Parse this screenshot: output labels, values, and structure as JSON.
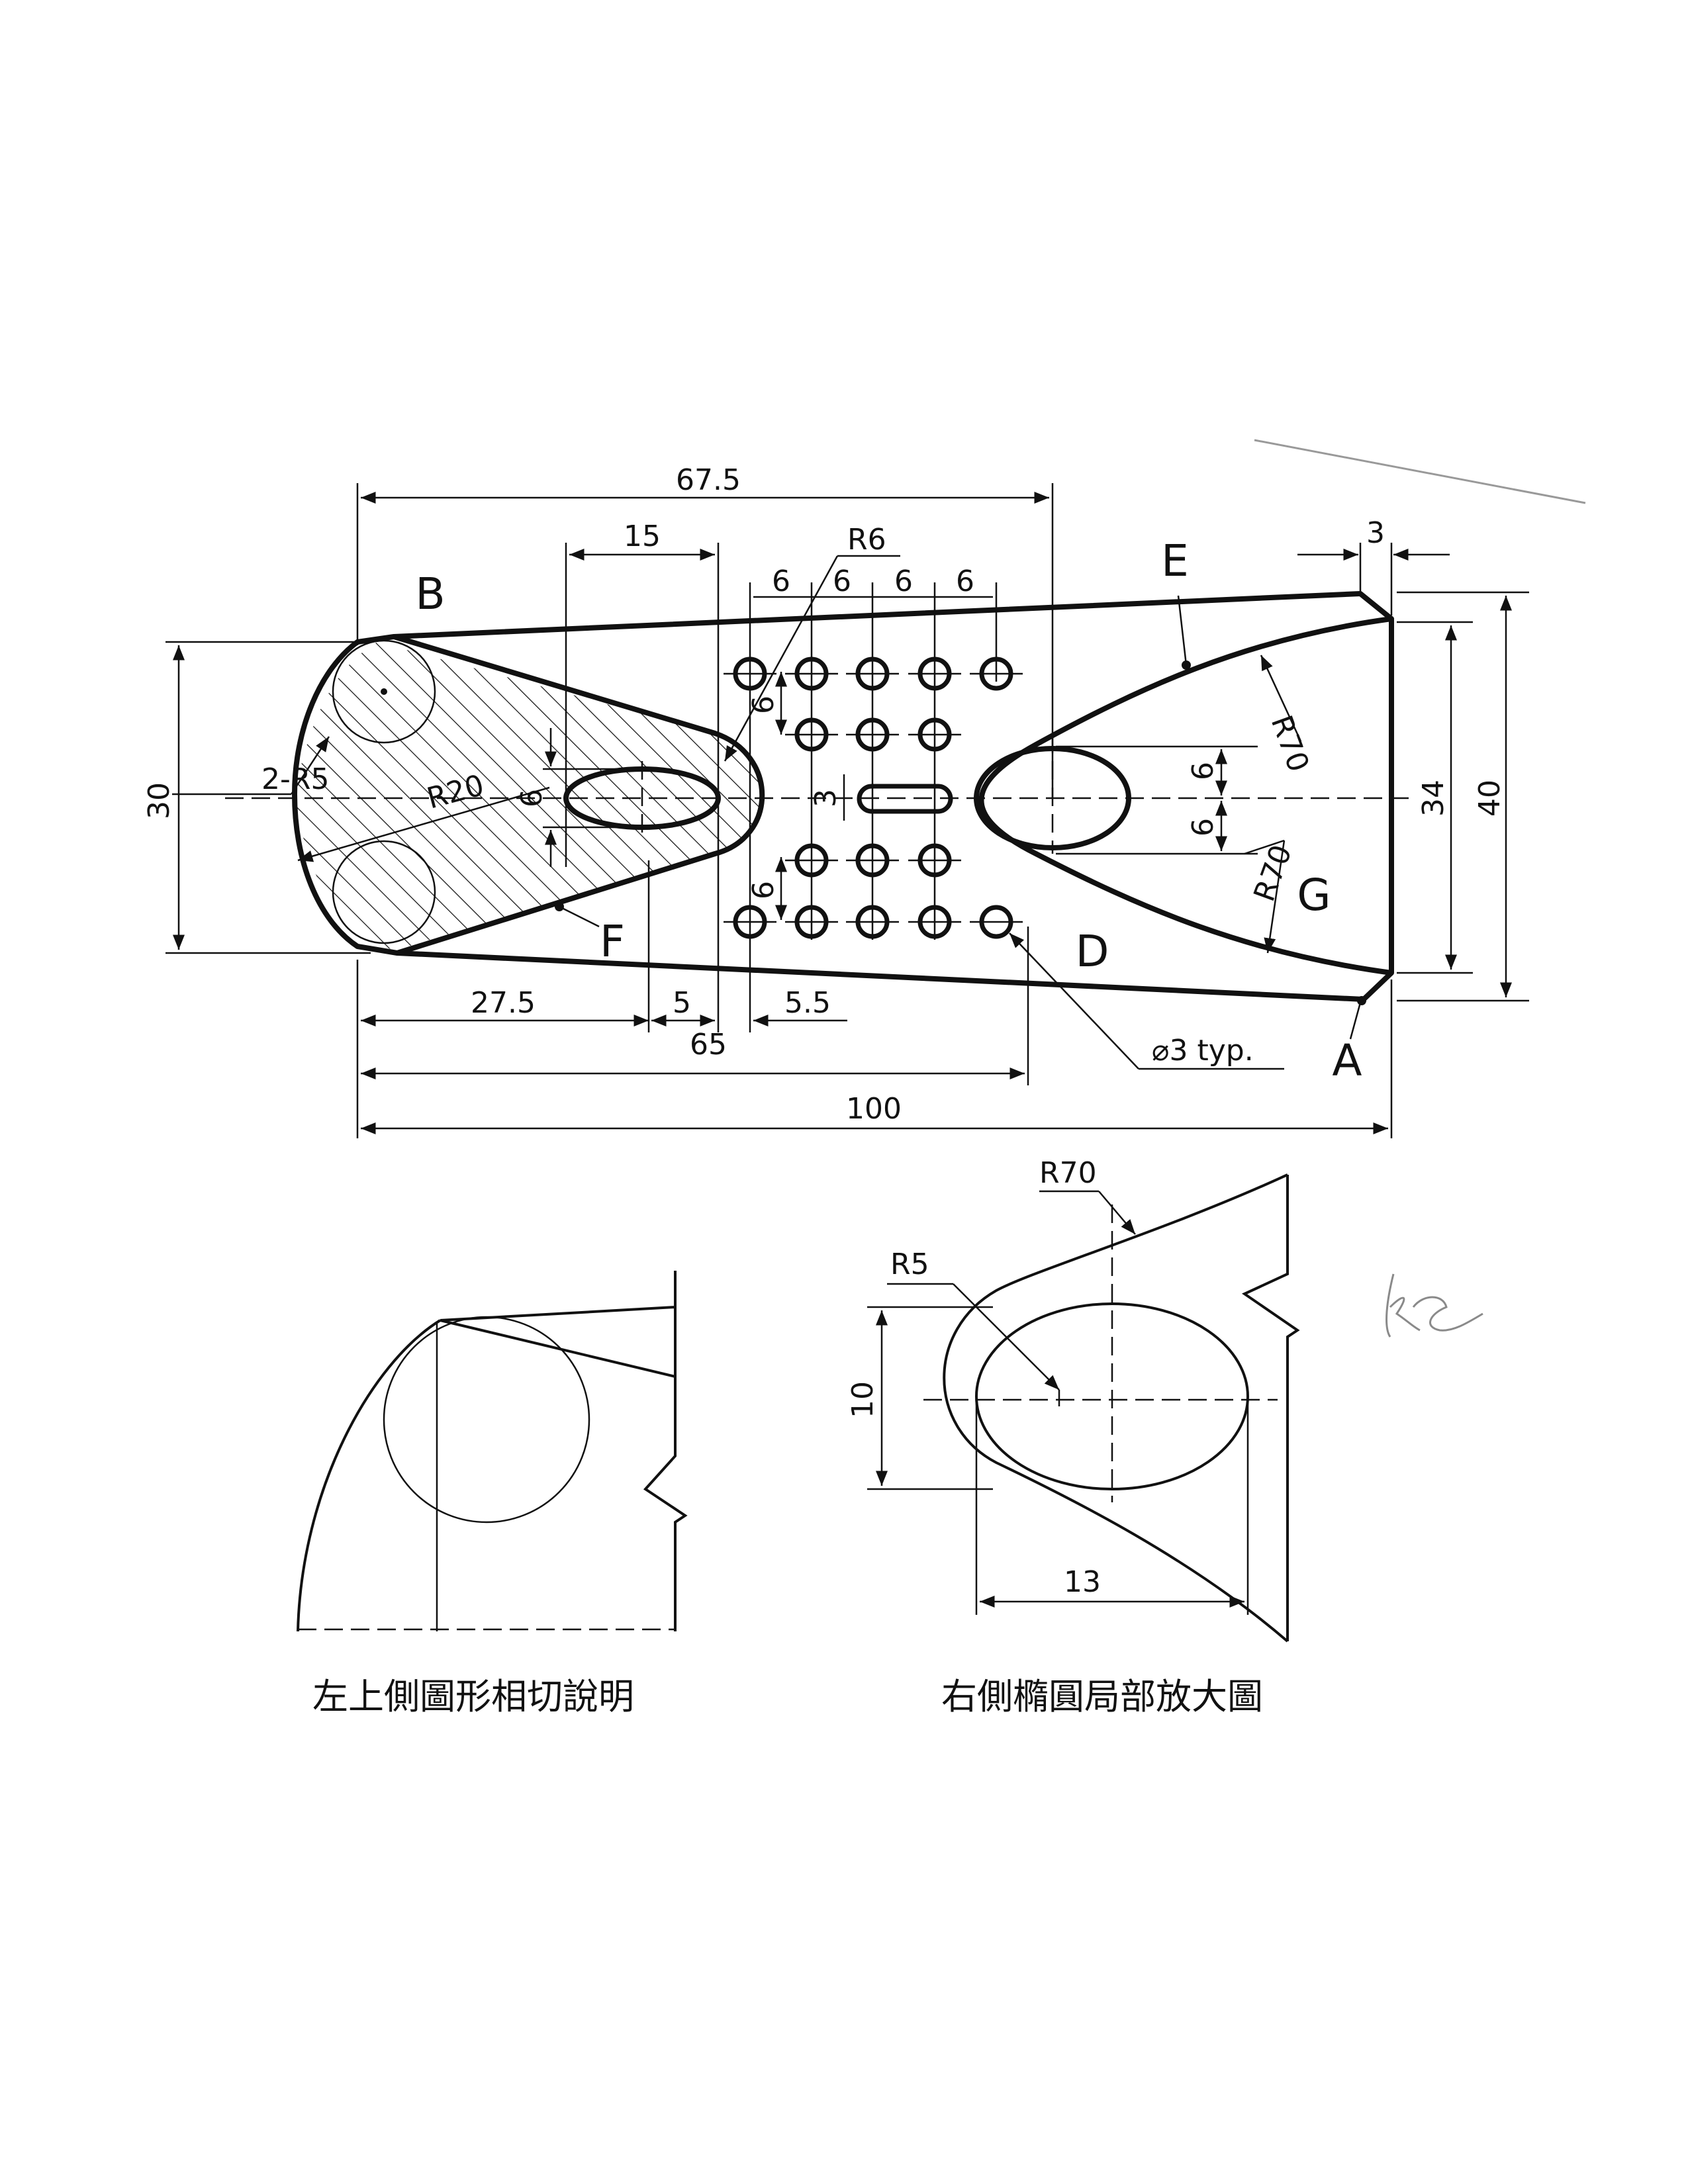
{
  "drawing": {
    "point_labels": {
      "A": "A",
      "B": "B",
      "D": "D",
      "E": "E",
      "F": "F",
      "G": "G"
    },
    "dimensions": {
      "overall_length": "100",
      "length_67_5": "67.5",
      "length_65": "65",
      "len_27_5": "27.5",
      "len_5": "5",
      "len_5_5": "5.5",
      "width_15": "15",
      "pitch_6_a": "6",
      "pitch_6_b": "6",
      "pitch_6_c": "6",
      "pitch_6_d": "6",
      "right_gap_3": "3",
      "height_30": "30",
      "height_34": "34",
      "height_40": "40",
      "slot_6_upper": "6",
      "slot_6_lower": "6",
      "slot_height_3": "3",
      "ellipse_height_6": "6",
      "vgrid_6_upper": "6",
      "vgrid_6_lower": "6",
      "radius_r6": "R6",
      "radius_r20": "R20",
      "radius_2r5": "2-R5",
      "radius_r70_upper": "R70",
      "radius_r70_lower": "R70",
      "hole_callout": "⌀3 typ."
    },
    "hole_pattern": {
      "rows": [
        {
          "cols": [
            1,
            2,
            3,
            4,
            5
          ]
        },
        {
          "cols": [
            2,
            3,
            4
          ]
        },
        {
          "cols": [
            2,
            3,
            4
          ]
        },
        {
          "cols": [
            1,
            2,
            3,
            4,
            5
          ]
        }
      ]
    }
  },
  "detail_left": {
    "caption": "左上側圖形相切說明"
  },
  "detail_right": {
    "caption": "右側橢圓局部放大圖",
    "radius_r70": "R70",
    "radius_r5": "R5",
    "dim_10": "10",
    "dim_13": "13"
  },
  "handwritten_mark": "kc",
  "colors": {
    "ink": "#111111",
    "paper": "#ffffff",
    "pencil": "#8a8a8a"
  }
}
